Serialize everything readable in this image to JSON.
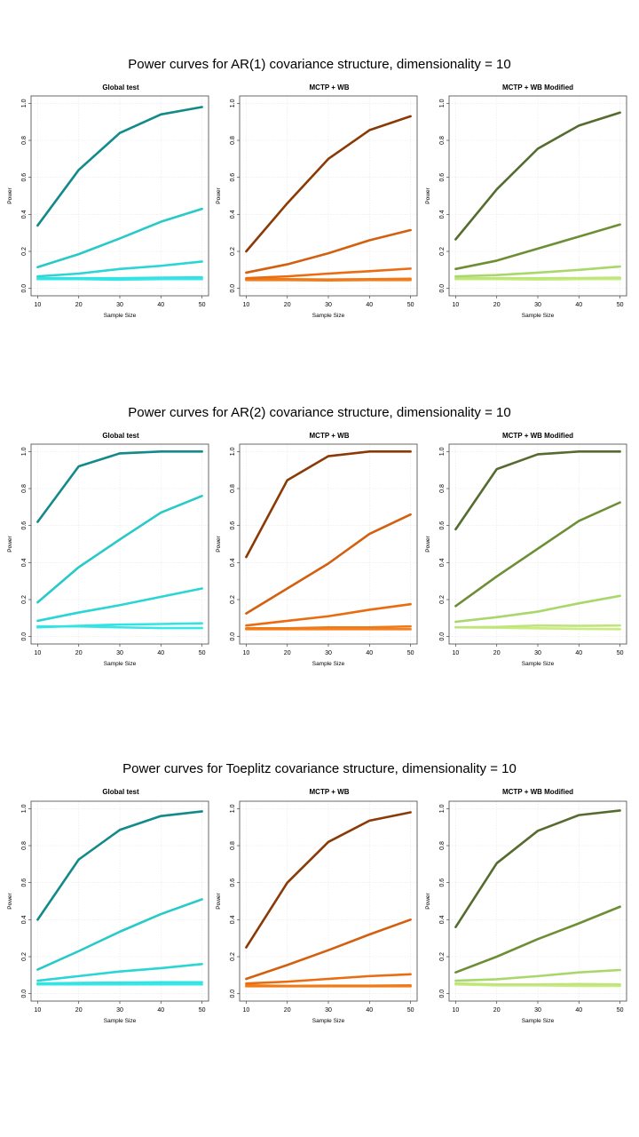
{
  "sections": [
    {
      "title": "Power curves for AR(1) covariance structure, dimensionality = 10"
    },
    {
      "title": "Power curves for AR(2) covariance structure, dimensionality = 10"
    },
    {
      "title": "Power curves for Toeplitz covariance structure, dimensionality = 10"
    }
  ],
  "colors": {
    "global": [
      "#138a8a",
      "#27c9c9",
      "#2ad5d5",
      "#33e3e3",
      "#3be6e6"
    ],
    "mctp": [
      "#8b3a06",
      "#d2600f",
      "#ea6c10",
      "#f07a18",
      "#f58220"
    ],
    "modified": [
      "#556b2f",
      "#6e8e36",
      "#a8d86a",
      "#bfe57a",
      "#c8ec80"
    ],
    "axis": "#000000",
    "grid": "#e6e6e6"
  },
  "chart_data": [
    {
      "type": "line",
      "section": 0,
      "title": "Global test",
      "xlabel": "Sample Size",
      "ylabel": "Power",
      "x": [
        10,
        20,
        30,
        40,
        50
      ],
      "xlim": [
        10,
        50
      ],
      "ylim": [
        0,
        1
      ],
      "xticks": [
        "10",
        "20",
        "30",
        "40",
        "50"
      ],
      "yticks": [
        "0.0",
        "0.2",
        "0.4",
        "0.6",
        "0.8",
        "1.0"
      ],
      "grid": true,
      "palette": "global",
      "series": [
        {
          "values": [
            0.34,
            0.64,
            0.84,
            0.94,
            0.98
          ]
        },
        {
          "values": [
            0.115,
            0.185,
            0.27,
            0.36,
            0.43
          ]
        },
        {
          "values": [
            0.065,
            0.08,
            0.105,
            0.122,
            0.145
          ]
        },
        {
          "values": [
            0.055,
            0.055,
            0.055,
            0.058,
            0.06
          ]
        },
        {
          "values": [
            0.05,
            0.05,
            0.047,
            0.05,
            0.05
          ]
        }
      ]
    },
    {
      "type": "line",
      "section": 0,
      "title": "MCTP + WB",
      "xlabel": "Sample Size",
      "ylabel": "Power",
      "x": [
        10,
        20,
        30,
        40,
        50
      ],
      "xlim": [
        10,
        50
      ],
      "ylim": [
        0,
        1
      ],
      "xticks": [
        "10",
        "20",
        "30",
        "40",
        "50"
      ],
      "yticks": [
        "0.0",
        "0.2",
        "0.4",
        "0.6",
        "0.8",
        "1.0"
      ],
      "grid": true,
      "palette": "mctp",
      "series": [
        {
          "values": [
            0.2,
            0.46,
            0.7,
            0.855,
            0.93
          ]
        },
        {
          "values": [
            0.085,
            0.13,
            0.19,
            0.26,
            0.315
          ]
        },
        {
          "values": [
            0.055,
            0.065,
            0.08,
            0.093,
            0.107
          ]
        },
        {
          "values": [
            0.05,
            0.05,
            0.048,
            0.05,
            0.052
          ]
        },
        {
          "values": [
            0.045,
            0.045,
            0.043,
            0.045,
            0.045
          ]
        }
      ]
    },
    {
      "type": "line",
      "section": 0,
      "title": "MCTP + WB Modified",
      "xlabel": "Sample Size",
      "ylabel": "Power",
      "x": [
        10,
        20,
        30,
        40,
        50
      ],
      "xlim": [
        10,
        50
      ],
      "ylim": [
        0,
        1
      ],
      "xticks": [
        "10",
        "20",
        "30",
        "40",
        "50"
      ],
      "yticks": [
        "0.0",
        "0.2",
        "0.4",
        "0.6",
        "0.8",
        "1.0"
      ],
      "grid": true,
      "palette": "modified",
      "series": [
        {
          "values": [
            0.265,
            0.535,
            0.755,
            0.88,
            0.95
          ]
        },
        {
          "values": [
            0.105,
            0.15,
            0.215,
            0.28,
            0.345
          ]
        },
        {
          "values": [
            0.065,
            0.072,
            0.085,
            0.1,
            0.118
          ]
        },
        {
          "values": [
            0.055,
            0.055,
            0.055,
            0.056,
            0.058
          ]
        },
        {
          "values": [
            0.05,
            0.05,
            0.048,
            0.05,
            0.05
          ]
        }
      ]
    },
    {
      "type": "line",
      "section": 1,
      "title": "Global test",
      "xlabel": "Sample Size",
      "ylabel": "Power",
      "x": [
        10,
        20,
        30,
        40,
        50
      ],
      "xlim": [
        10,
        50
      ],
      "ylim": [
        0,
        1
      ],
      "xticks": [
        "10",
        "20",
        "30",
        "40",
        "50"
      ],
      "yticks": [
        "0.0",
        "0.2",
        "0.4",
        "0.6",
        "0.8",
        "1.0"
      ],
      "grid": true,
      "palette": "global",
      "series": [
        {
          "values": [
            0.62,
            0.92,
            0.99,
            1.0,
            1.0
          ]
        },
        {
          "values": [
            0.185,
            0.375,
            0.525,
            0.67,
            0.76
          ]
        },
        {
          "values": [
            0.085,
            0.13,
            0.17,
            0.215,
            0.26
          ]
        },
        {
          "values": [
            0.05,
            0.058,
            0.065,
            0.068,
            0.072
          ]
        },
        {
          "values": [
            0.055,
            0.055,
            0.05,
            0.046,
            0.046
          ]
        }
      ]
    },
    {
      "type": "line",
      "section": 1,
      "title": "MCTP + WB",
      "xlabel": "Sample Size",
      "ylabel": "Power",
      "x": [
        10,
        20,
        30,
        40,
        50
      ],
      "xlim": [
        10,
        50
      ],
      "ylim": [
        0,
        1
      ],
      "xticks": [
        "10",
        "20",
        "30",
        "40",
        "50"
      ],
      "yticks": [
        "0.0",
        "0.2",
        "0.4",
        "0.6",
        "0.8",
        "1.0"
      ],
      "grid": true,
      "palette": "mctp",
      "series": [
        {
          "values": [
            0.43,
            0.845,
            0.975,
            1.0,
            1.0
          ]
        },
        {
          "values": [
            0.125,
            0.26,
            0.395,
            0.555,
            0.66
          ]
        },
        {
          "values": [
            0.06,
            0.085,
            0.11,
            0.145,
            0.175
          ]
        },
        {
          "values": [
            0.045,
            0.045,
            0.05,
            0.05,
            0.055
          ]
        },
        {
          "values": [
            0.04,
            0.04,
            0.04,
            0.04,
            0.04
          ]
        }
      ]
    },
    {
      "type": "line",
      "section": 1,
      "title": "MCTP + WB Modified",
      "xlabel": "Sample Size",
      "ylabel": "Power",
      "x": [
        10,
        20,
        30,
        40,
        50
      ],
      "xlim": [
        10,
        50
      ],
      "ylim": [
        0,
        1
      ],
      "xticks": [
        "10",
        "20",
        "30",
        "40",
        "50"
      ],
      "yticks": [
        "0.0",
        "0.2",
        "0.4",
        "0.6",
        "0.8",
        "1.0"
      ],
      "grid": true,
      "palette": "modified",
      "series": [
        {
          "values": [
            0.58,
            0.905,
            0.985,
            1.0,
            1.0
          ]
        },
        {
          "values": [
            0.165,
            0.325,
            0.475,
            0.625,
            0.725
          ]
        },
        {
          "values": [
            0.08,
            0.105,
            0.135,
            0.18,
            0.22
          ]
        },
        {
          "values": [
            0.05,
            0.052,
            0.06,
            0.058,
            0.06
          ]
        },
        {
          "values": [
            0.05,
            0.048,
            0.045,
            0.042,
            0.04
          ]
        }
      ]
    },
    {
      "type": "line",
      "section": 2,
      "title": "Global test",
      "xlabel": "Sample Size",
      "ylabel": "Power",
      "x": [
        10,
        20,
        30,
        40,
        50
      ],
      "xlim": [
        10,
        50
      ],
      "ylim": [
        0,
        1
      ],
      "xticks": [
        "10",
        "20",
        "30",
        "40",
        "50"
      ],
      "yticks": [
        "0.0",
        "0.2",
        "0.4",
        "0.6",
        "0.8",
        "1.0"
      ],
      "grid": true,
      "palette": "global",
      "series": [
        {
          "values": [
            0.4,
            0.725,
            0.885,
            0.96,
            0.985
          ]
        },
        {
          "values": [
            0.13,
            0.23,
            0.335,
            0.43,
            0.51
          ]
        },
        {
          "values": [
            0.07,
            0.095,
            0.12,
            0.138,
            0.16
          ]
        },
        {
          "values": [
            0.055,
            0.058,
            0.06,
            0.062,
            0.062
          ]
        },
        {
          "values": [
            0.05,
            0.05,
            0.05,
            0.05,
            0.05
          ]
        }
      ]
    },
    {
      "type": "line",
      "section": 2,
      "title": "MCTP + WB",
      "xlabel": "Sample Size",
      "ylabel": "Power",
      "x": [
        10,
        20,
        30,
        40,
        50
      ],
      "xlim": [
        10,
        50
      ],
      "ylim": [
        0,
        1
      ],
      "xticks": [
        "10",
        "20",
        "30",
        "40",
        "50"
      ],
      "yticks": [
        "0.0",
        "0.2",
        "0.4",
        "0.6",
        "0.8",
        "1.0"
      ],
      "grid": true,
      "palette": "mctp",
      "series": [
        {
          "values": [
            0.25,
            0.6,
            0.82,
            0.935,
            0.98
          ]
        },
        {
          "values": [
            0.08,
            0.155,
            0.235,
            0.32,
            0.4
          ]
        },
        {
          "values": [
            0.055,
            0.065,
            0.08,
            0.095,
            0.105
          ]
        },
        {
          "values": [
            0.045,
            0.042,
            0.043,
            0.043,
            0.045
          ]
        },
        {
          "values": [
            0.04,
            0.04,
            0.04,
            0.04,
            0.04
          ]
        }
      ]
    },
    {
      "type": "line",
      "section": 2,
      "title": "MCTP + WB Modified",
      "xlabel": "Sample Size",
      "ylabel": "Power",
      "x": [
        10,
        20,
        30,
        40,
        50
      ],
      "xlim": [
        10,
        50
      ],
      "ylim": [
        0,
        1
      ],
      "xticks": [
        "10",
        "20",
        "30",
        "40",
        "50"
      ],
      "yticks": [
        "0.0",
        "0.2",
        "0.4",
        "0.6",
        "0.8",
        "1.0"
      ],
      "grid": true,
      "palette": "modified",
      "series": [
        {
          "values": [
            0.36,
            0.705,
            0.88,
            0.965,
            0.99
          ]
        },
        {
          "values": [
            0.115,
            0.2,
            0.295,
            0.38,
            0.47
          ]
        },
        {
          "values": [
            0.07,
            0.078,
            0.095,
            0.115,
            0.128
          ]
        },
        {
          "values": [
            0.055,
            0.05,
            0.05,
            0.052,
            0.05
          ]
        },
        {
          "values": [
            0.05,
            0.045,
            0.045,
            0.042,
            0.042
          ]
        }
      ]
    }
  ]
}
